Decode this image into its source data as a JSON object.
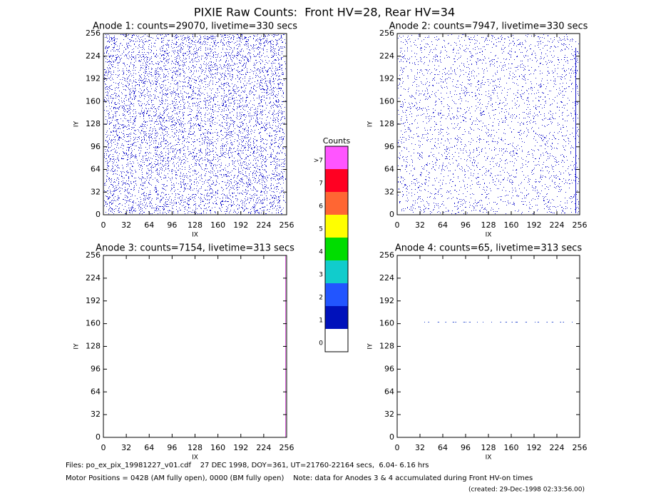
{
  "title": "PIXIE Raw Counts:  Front HV=28, Rear HV=34",
  "chart_data": [
    {
      "type": "pixelmap",
      "title": "Anode 1: counts=29070, livetime=330 secs",
      "x_label": "IX",
      "y_label": "IY",
      "xlim": [
        0,
        256
      ],
      "ylim": [
        0,
        256
      ],
      "xticks": [
        0,
        32,
        64,
        96,
        128,
        160,
        192,
        224,
        256
      ],
      "yticks": [
        0,
        32,
        64,
        96,
        128,
        160,
        192,
        224,
        256
      ]
    },
    {
      "type": "pixelmap",
      "title": "Anode 2: counts=7947, livetime=330 secs",
      "x_label": "IX",
      "y_label": "IY",
      "xlim": [
        0,
        256
      ],
      "ylim": [
        0,
        256
      ],
      "xticks": [
        0,
        32,
        64,
        96,
        128,
        160,
        192,
        224,
        256
      ],
      "yticks": [
        0,
        32,
        64,
        96,
        128,
        160,
        192,
        224,
        256
      ]
    },
    {
      "type": "pixelmap",
      "title": "Anode 3: counts=7154, livetime=313 secs",
      "x_label": "IX",
      "y_label": "IY",
      "xlim": [
        0,
        256
      ],
      "ylim": [
        0,
        256
      ],
      "xticks": [
        0,
        32,
        64,
        96,
        128,
        160,
        192,
        224,
        256
      ],
      "yticks": [
        0,
        32,
        64,
        96,
        128,
        160,
        192,
        224,
        256
      ]
    },
    {
      "type": "pixelmap",
      "title": "Anode 4: counts=65, livetime=313 secs",
      "x_label": "IX",
      "y_label": "IY",
      "xlim": [
        0,
        256
      ],
      "ylim": [
        0,
        256
      ],
      "xticks": [
        0,
        32,
        64,
        96,
        128,
        160,
        192,
        224,
        256
      ],
      "yticks": [
        0,
        32,
        64,
        96,
        128,
        160,
        192,
        224,
        256
      ]
    }
  ],
  "colorbar": {
    "title": "Counts",
    "levels": [
      {
        "label": ">7",
        "color": "#ff55ff"
      },
      {
        "label": "7",
        "color": "#ff0022"
      },
      {
        "label": "6",
        "color": "#ff6633"
      },
      {
        "label": "5",
        "color": "#ffff00"
      },
      {
        "label": "4",
        "color": "#00dd00"
      },
      {
        "label": "3",
        "color": "#11cccc"
      },
      {
        "label": "2",
        "color": "#2255ff"
      },
      {
        "label": "1",
        "color": "#0011bb"
      },
      {
        "label": "0",
        "color": "#ffffff"
      }
    ]
  },
  "footer": [
    "Files: po_ex_pix_19981227_v01.cdf    27 DEC 1998, DOY=361, UT=21760-22164 secs,  6.04- 6.16 hrs",
    "Motor Positions = 0428 (AM fully open), 0000 (BM fully open)    Note: data for Anodes 3 & 4 accumulated during Front HV-on times"
  ],
  "created": "(created: 29-Dec-1998 02:33:56.00)"
}
